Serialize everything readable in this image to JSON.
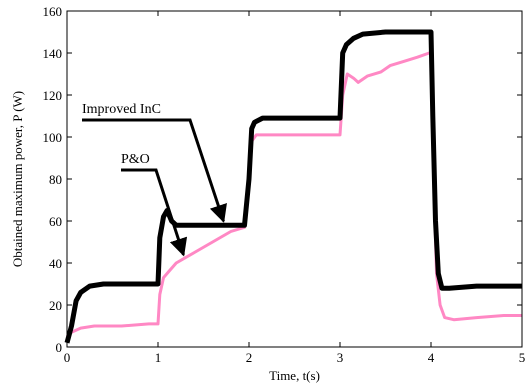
{
  "chart_data": {
    "type": "line",
    "title": "",
    "xlabel": "Time, t(s)",
    "ylabel": "Obtained maximum power, P (W)",
    "xlim": [
      0,
      5
    ],
    "ylim": [
      0,
      160
    ],
    "xticks": [
      "0",
      "1",
      "2",
      "3",
      "4",
      "5"
    ],
    "yticks": [
      "0",
      "20",
      "40",
      "60",
      "80",
      "100",
      "120",
      "140",
      "160"
    ],
    "grid": false,
    "legend": "none",
    "series": [
      {
        "name": "Improved InC",
        "color": "#000000",
        "points": [
          [
            0,
            2
          ],
          [
            0.05,
            10
          ],
          [
            0.1,
            22
          ],
          [
            0.15,
            26
          ],
          [
            0.25,
            29
          ],
          [
            0.4,
            30
          ],
          [
            1.0,
            30
          ],
          [
            1.02,
            52
          ],
          [
            1.06,
            62
          ],
          [
            1.1,
            65
          ],
          [
            1.15,
            60
          ],
          [
            1.2,
            58
          ],
          [
            1.5,
            58
          ],
          [
            1.95,
            58
          ],
          [
            2.0,
            80
          ],
          [
            2.03,
            104
          ],
          [
            2.06,
            107
          ],
          [
            2.15,
            109
          ],
          [
            2.5,
            109
          ],
          [
            3.0,
            109
          ],
          [
            3.03,
            140
          ],
          [
            3.07,
            144
          ],
          [
            3.15,
            147
          ],
          [
            3.25,
            149
          ],
          [
            3.5,
            150
          ],
          [
            4.0,
            150
          ],
          [
            4.02,
            110
          ],
          [
            4.05,
            60
          ],
          [
            4.08,
            35
          ],
          [
            4.12,
            28
          ],
          [
            4.2,
            28
          ],
          [
            4.5,
            29
          ],
          [
            5.0,
            29
          ]
        ]
      },
      {
        "name": "P&O",
        "color": "#ff88c4",
        "points": [
          [
            0,
            5
          ],
          [
            0.05,
            7
          ],
          [
            0.15,
            9
          ],
          [
            0.3,
            10
          ],
          [
            0.6,
            10
          ],
          [
            0.9,
            11
          ],
          [
            1.0,
            11
          ],
          [
            1.02,
            25
          ],
          [
            1.06,
            33
          ],
          [
            1.12,
            36
          ],
          [
            1.2,
            40
          ],
          [
            1.4,
            45
          ],
          [
            1.6,
            50
          ],
          [
            1.8,
            55
          ],
          [
            1.95,
            57
          ],
          [
            2.0,
            78
          ],
          [
            2.03,
            98
          ],
          [
            2.08,
            101
          ],
          [
            2.3,
            101
          ],
          [
            2.7,
            101
          ],
          [
            3.0,
            101
          ],
          [
            3.03,
            120
          ],
          [
            3.08,
            130
          ],
          [
            3.15,
            128
          ],
          [
            3.2,
            126
          ],
          [
            3.3,
            129
          ],
          [
            3.45,
            131
          ],
          [
            3.55,
            134
          ],
          [
            3.7,
            136
          ],
          [
            3.85,
            138
          ],
          [
            3.98,
            140
          ],
          [
            4.0,
            140
          ],
          [
            4.03,
            80
          ],
          [
            4.06,
            35
          ],
          [
            4.1,
            20
          ],
          [
            4.15,
            14
          ],
          [
            4.25,
            13
          ],
          [
            4.5,
            14
          ],
          [
            4.8,
            15
          ],
          [
            5.0,
            15
          ]
        ]
      }
    ],
    "annotations": [
      {
        "text": "Improved InC",
        "target": [
          1.72,
          58
        ]
      },
      {
        "text": "P&O",
        "target": [
          1.28,
          42
        ]
      }
    ]
  }
}
